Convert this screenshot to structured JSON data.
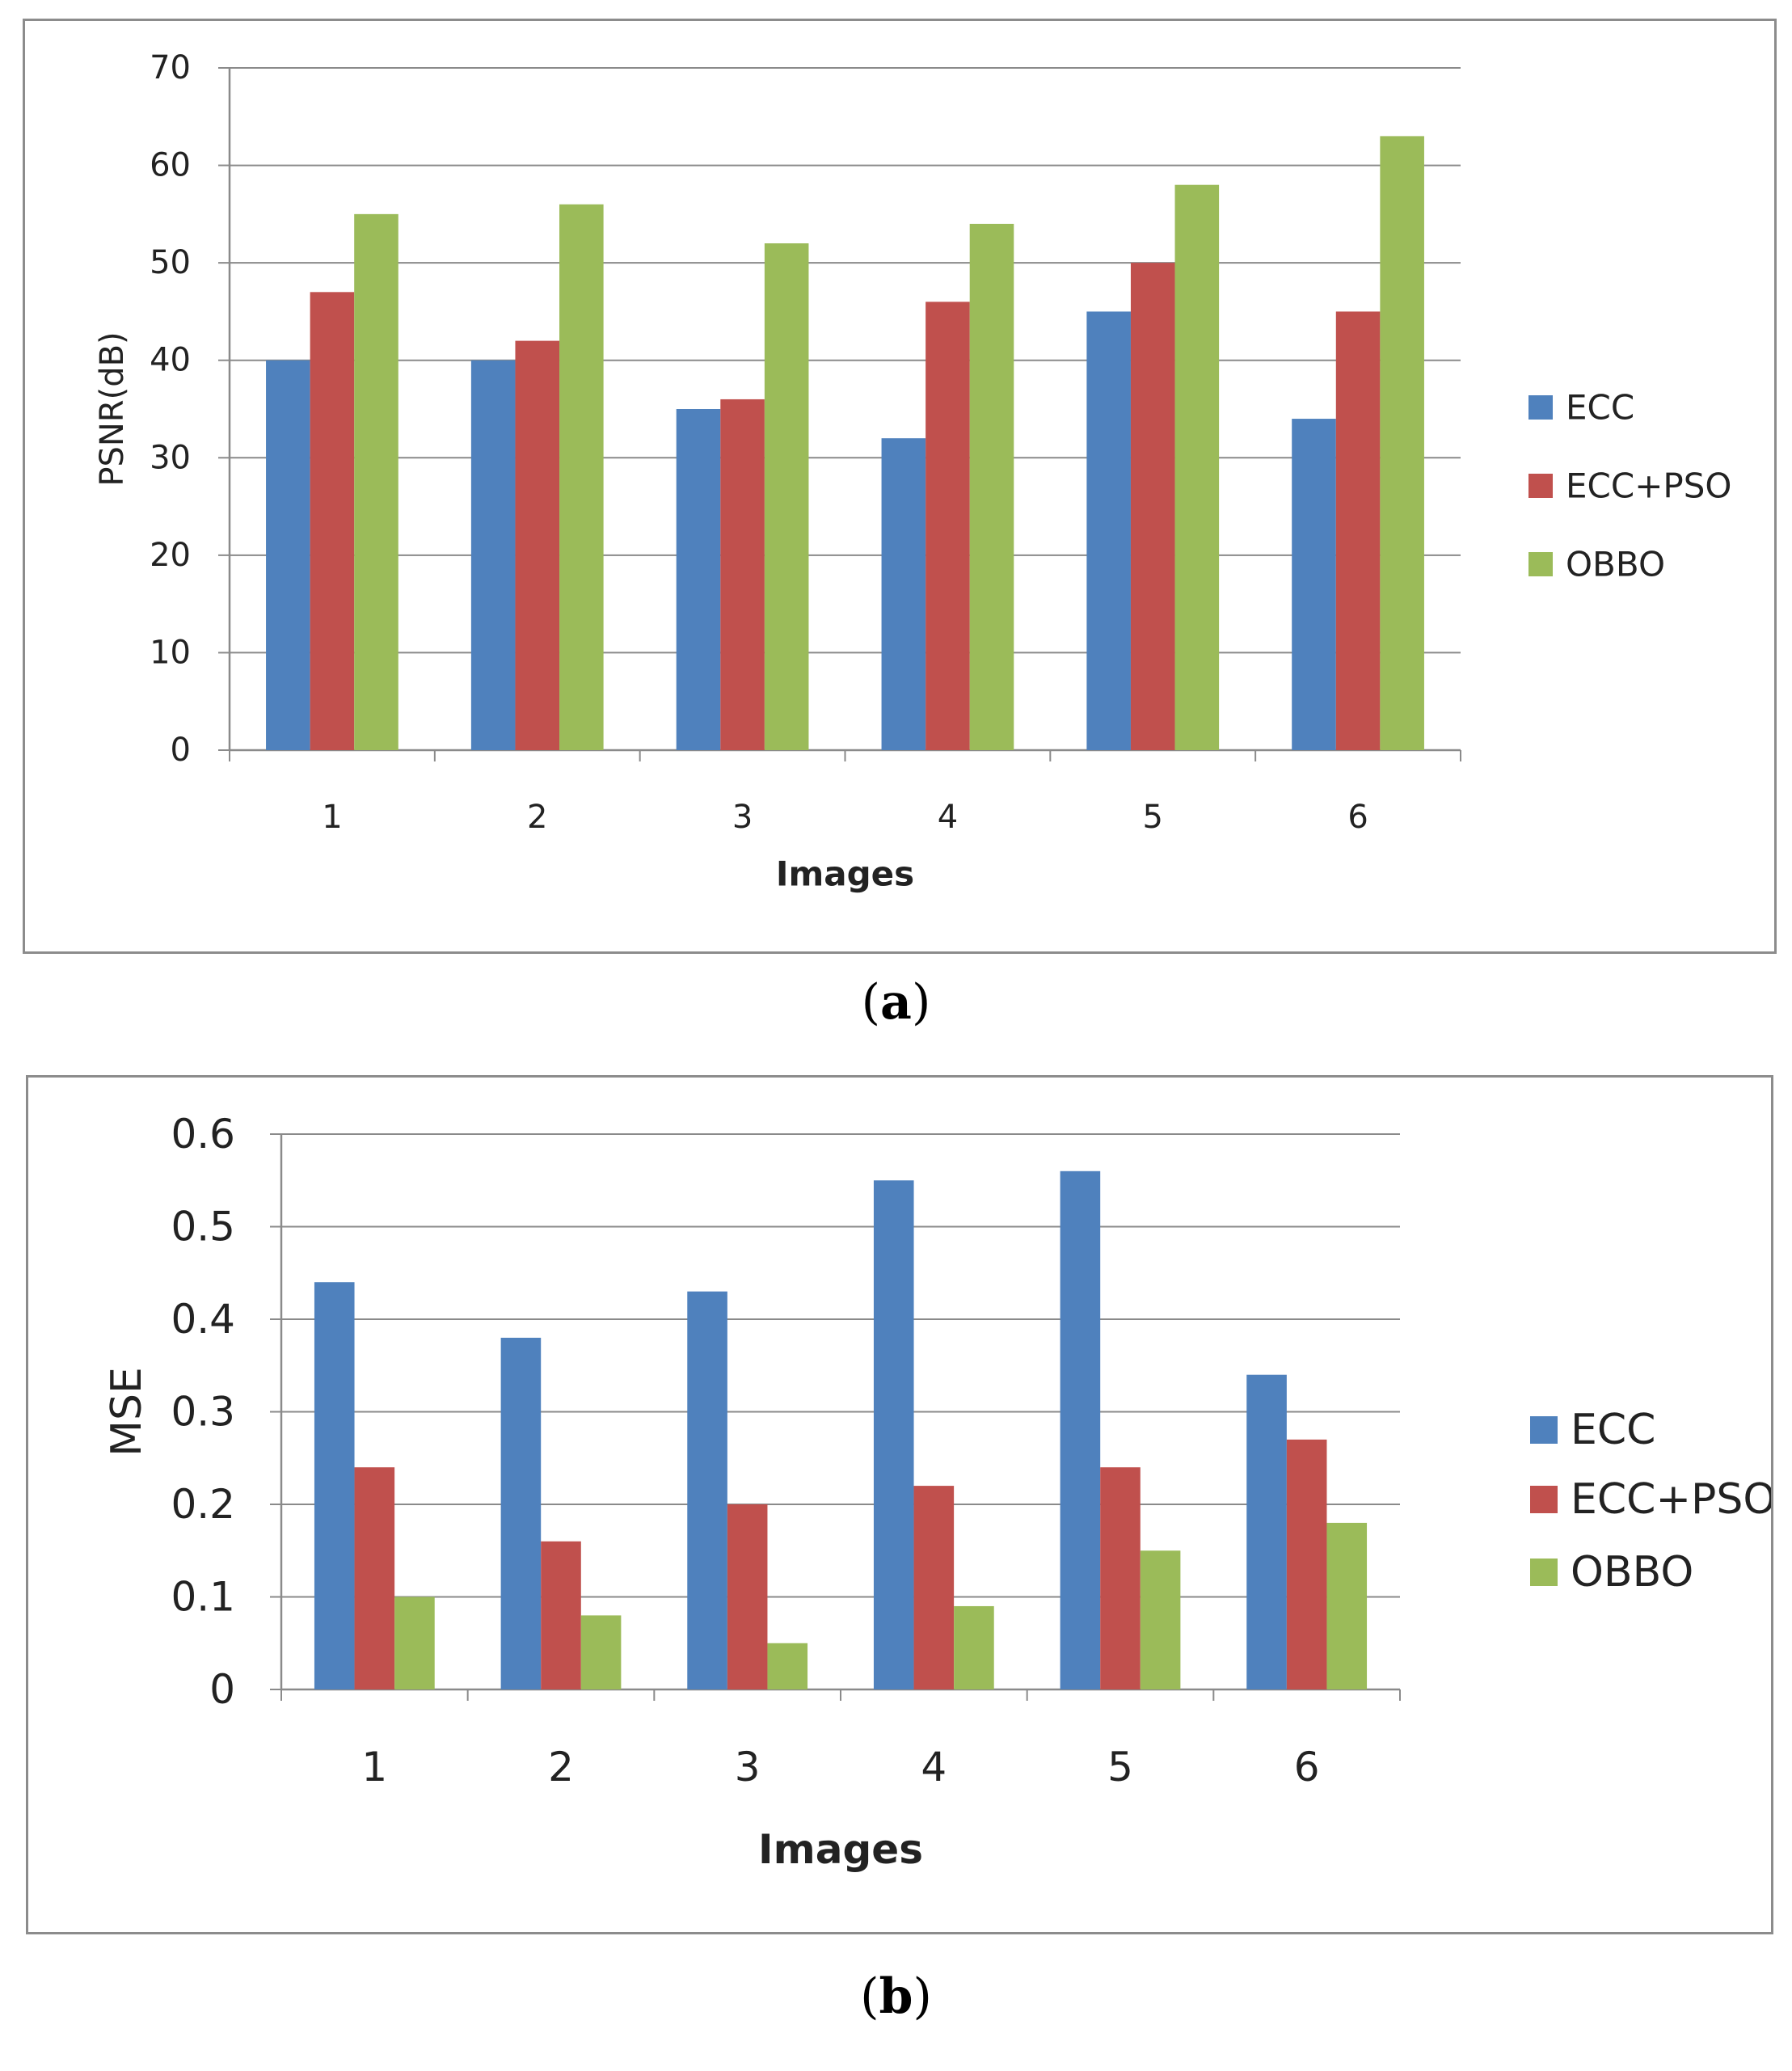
{
  "captions": {
    "a": {
      "open": "(",
      "letter": "a",
      "close": ")"
    },
    "b": {
      "open": "(",
      "letter": "b",
      "close": ")"
    }
  },
  "chart_data": [
    {
      "type": "bar",
      "categories": [
        "1",
        "2",
        "3",
        "4",
        "5",
        "6"
      ],
      "series": [
        {
          "name": "ECC",
          "color": "#4F81BD",
          "values": [
            40,
            40,
            35,
            32,
            45,
            34
          ]
        },
        {
          "name": "ECC+PSO",
          "color": "#C0504D",
          "values": [
            47,
            42,
            36,
            46,
            50,
            45
          ]
        },
        {
          "name": "OBBO",
          "color": "#9BBB59",
          "values": [
            55,
            56,
            52,
            54,
            58,
            63
          ]
        }
      ],
      "xlabel": "Images",
      "ylabel": "PSNR(dB)",
      "ylim": [
        0,
        70
      ],
      "yticks": [
        "0",
        "10",
        "20",
        "30",
        "40",
        "50",
        "60",
        "70"
      ],
      "grid": true,
      "legend": "right"
    },
    {
      "type": "bar",
      "categories": [
        "1",
        "2",
        "3",
        "4",
        "5",
        "6"
      ],
      "series": [
        {
          "name": "ECC",
          "color": "#4F81BD",
          "values": [
            0.44,
            0.38,
            0.43,
            0.55,
            0.56,
            0.34
          ]
        },
        {
          "name": "ECC+PSO",
          "color": "#C0504D",
          "values": [
            0.24,
            0.16,
            0.2,
            0.22,
            0.24,
            0.27
          ]
        },
        {
          "name": "OBBO",
          "color": "#9BBB59",
          "values": [
            0.1,
            0.08,
            0.05,
            0.09,
            0.15,
            0.18
          ]
        }
      ],
      "xlabel": "Images",
      "ylabel": "MSE",
      "ylim": [
        0,
        0.6
      ],
      "yticks": [
        "0",
        "0.1",
        "0.2",
        "0.3",
        "0.4",
        "0.5",
        "0.6"
      ],
      "grid": true,
      "legend": "right"
    }
  ]
}
